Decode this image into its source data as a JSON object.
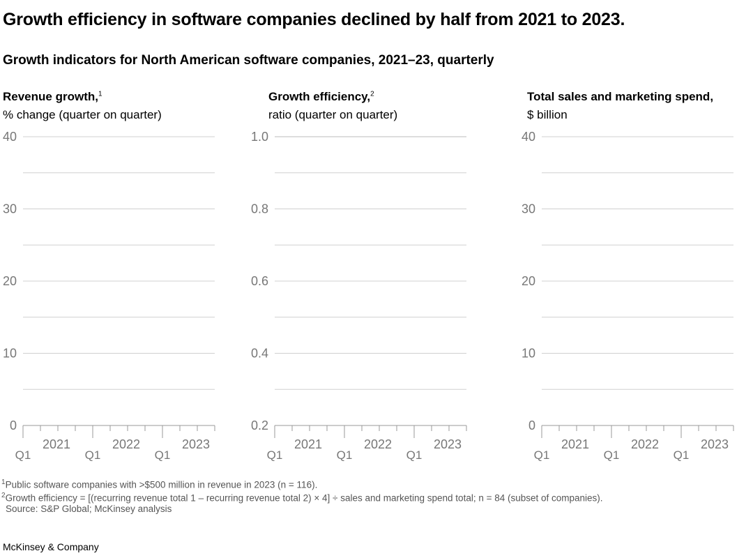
{
  "title": "Growth efficiency in software companies declined by half from 2021 to 2023.",
  "subtitle": "Growth indicators for North American software companies, 2021–23, quarterly",
  "chart_data": [
    {
      "type": "line",
      "title": "Revenue growth,",
      "title_note": "1",
      "ylabel": "% change (quarter on quarter)",
      "ylim": [
        0,
        40
      ],
      "yticks": [
        "0",
        "10",
        "20",
        "30",
        "40"
      ],
      "x_quarter_labels": [
        "Q1",
        "Q1",
        "Q1"
      ],
      "x_year_labels": [
        "2021",
        "2022",
        "2023"
      ],
      "grid": true,
      "series": []
    },
    {
      "type": "line",
      "title": "Growth efficiency,",
      "title_note": "2",
      "ylabel": "ratio (quarter on quarter)",
      "ylim": [
        0.2,
        1.0
      ],
      "yticks": [
        "0.2",
        "0.4",
        "0.6",
        "0.8",
        "1.0"
      ],
      "x_quarter_labels": [
        "Q1",
        "Q1",
        "Q1"
      ],
      "x_year_labels": [
        "2021",
        "2022",
        "2023"
      ],
      "grid": true,
      "series": []
    },
    {
      "type": "line",
      "title": "Total sales and marketing spend,",
      "title_note": "",
      "ylabel": "$ billion",
      "ylim": [
        0,
        40
      ],
      "yticks": [
        "0",
        "10",
        "20",
        "30",
        "40"
      ],
      "x_quarter_labels": [
        "Q1",
        "Q1",
        "Q1"
      ],
      "x_year_labels": [
        "2021",
        "2022",
        "2023"
      ],
      "grid": true,
      "series": []
    }
  ],
  "footnotes": [
    {
      "mark": "1",
      "text": "Public software companies with >$500 million in revenue in 2023 (n = 116)."
    },
    {
      "mark": "2",
      "text": "Growth efficiency = [(recurring revenue total 1 – recurring revenue total 2) × 4] ÷ sales and marketing spend total; n = 84 (subset of companies)."
    }
  ],
  "source": "Source: S&P Global; McKinsey analysis",
  "brand": "McKinsey & Company",
  "colors": {
    "grid": "#d0d0d0",
    "axis": "#999999",
    "tick_label": "#777777"
  }
}
